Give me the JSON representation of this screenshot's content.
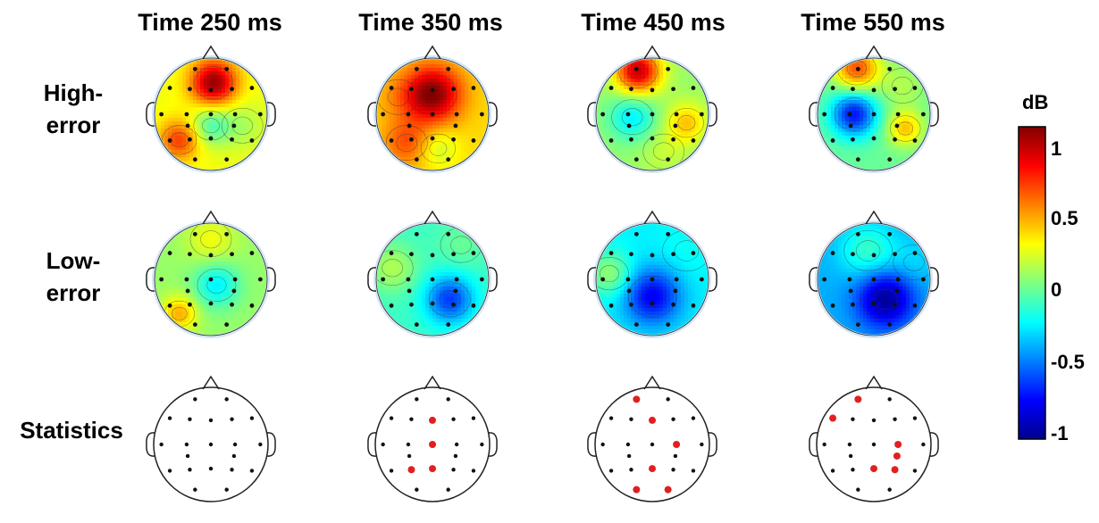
{
  "column_titles": [
    "Time 250 ms",
    "Time 350 ms",
    "Time 450 ms",
    "Time 550 ms"
  ],
  "row_labels": [
    "High-\nerror",
    "Low-\nerror",
    "Statistics"
  ],
  "colorbar": {
    "unit": "dB",
    "ticks": [
      "1",
      "0.5",
      "0",
      "-0.5",
      "-1"
    ],
    "range": [
      -1.1,
      1.1
    ],
    "colormap": "jet"
  },
  "colors": {
    "electrode": "#111111",
    "significant_electrode": "#e02020",
    "contour": "#333333",
    "head_outline": "#222222"
  },
  "significant_electrodes": {
    "time_250": [],
    "time_350": [
      "Fz",
      "Cz",
      "P3",
      "Pz"
    ],
    "time_450": [
      "Fp1",
      "Fz",
      "C4",
      "Pz",
      "O1",
      "O2"
    ],
    "time_550": [
      "Fp1",
      "F7",
      "C4",
      "CP4",
      "P4",
      "Pz"
    ]
  }
}
